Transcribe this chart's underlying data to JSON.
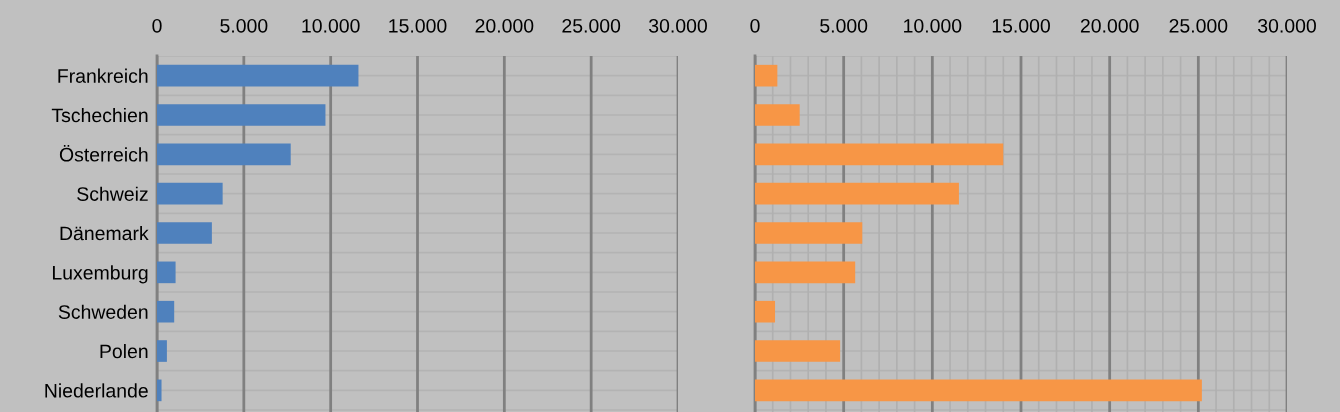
{
  "chart_data": [
    {
      "type": "bar",
      "orientation": "horizontal",
      "categories": [
        "Frankreich",
        "Tschechien",
        "Österreich",
        "Schweiz",
        "Dänemark",
        "Luxemburg",
        "Schweden",
        "Polen",
        "Niederlande"
      ],
      "series": [
        {
          "color": "#4f81bd",
          "values": [
            11600,
            9700,
            7700,
            3780,
            3160,
            1070,
            990,
            570,
            260
          ]
        }
      ],
      "xlim": [
        0,
        30000
      ],
      "xticks": [
        0,
        {
          "value": 5000,
          "label": "5.000"
        },
        {
          "value": 10000,
          "label": "10.000"
        },
        {
          "value": 15000,
          "label": "15.000"
        },
        {
          "value": 20000,
          "label": "20.000"
        },
        {
          "value": 25000,
          "label": "25.000"
        },
        {
          "value": 30000,
          "label": "30.000"
        }
      ],
      "grid": true
    },
    {
      "type": "bar",
      "orientation": "horizontal",
      "categories": [
        null,
        null,
        null,
        null,
        null,
        null,
        null,
        null,
        null
      ],
      "series": [
        {
          "color": "#f79646",
          "values": [
            1260,
            2520,
            14000,
            11500,
            6050,
            5650,
            1130,
            4800,
            25200
          ]
        }
      ],
      "xlim": [
        0,
        30000
      ],
      "xticks": [
        0,
        {
          "value": 1000,
          "label": null
        },
        {
          "value": 2000,
          "label": null
        },
        {
          "value": 3000,
          "label": null
        },
        {
          "value": 4000,
          "label": null
        },
        {
          "value": 5000,
          "label": "5.000"
        },
        {
          "value": 6000,
          "label": null
        },
        {
          "value": 7000,
          "label": null
        },
        {
          "value": 8000,
          "label": null
        },
        {
          "value": 9000,
          "label": null
        },
        {
          "value": 10000,
          "label": "10.000"
        },
        {
          "value": 11000,
          "label": null
        },
        {
          "value": 12000,
          "label": null
        },
        {
          "value": 13000,
          "label": null
        },
        {
          "value": 14000,
          "label": null
        },
        {
          "value": 15000,
          "label": "15.000"
        },
        {
          "value": 16000,
          "label": null
        },
        {
          "value": 17000,
          "label": null
        },
        {
          "value": 18000,
          "label": null
        },
        {
          "value": 19000,
          "label": null
        },
        {
          "value": 20000,
          "label": "20.000"
        },
        {
          "value": 21000,
          "label": null
        },
        {
          "value": 22000,
          "label": null
        },
        {
          "value": 23000,
          "label": null
        },
        {
          "value": 24000,
          "label": null
        },
        {
          "value": 25000,
          "label": "25.000"
        },
        {
          "value": 26000,
          "label": null
        },
        {
          "value": 27000,
          "label": null
        },
        {
          "value": 28000,
          "label": null
        },
        {
          "value": 29000,
          "label": null
        },
        {
          "value": 30000,
          "label": "30.000"
        }
      ],
      "grid": true,
      "tick_labels": "x"
    }
  ]
}
